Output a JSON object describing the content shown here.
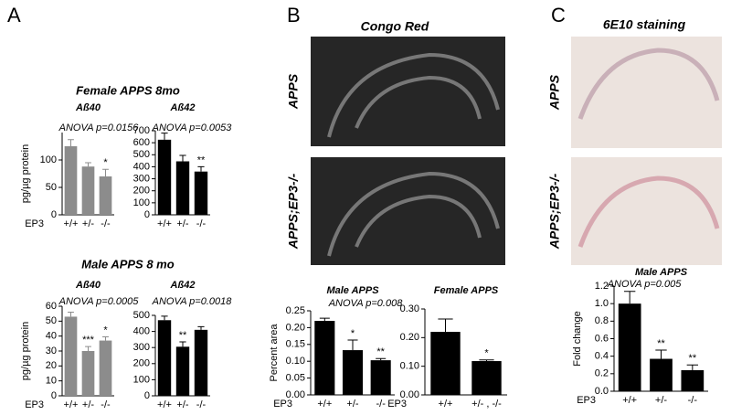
{
  "panels": [
    {
      "label": "A",
      "headings": [
        "Female APPS 8mo",
        "Male APPS 8 mo"
      ]
    },
    {
      "label": "B",
      "title": "Congo Red",
      "image_labels": [
        "APPS",
        "APPS;EP3-/-"
      ]
    },
    {
      "label": "C",
      "title": "6E10 staining",
      "image_labels": [
        "APPS",
        "APPS;EP3-/-"
      ]
    }
  ],
  "chart_data": [
    {
      "type": "bar",
      "title": "Aß40",
      "annotation": "ANOVA p=0.0156",
      "ylabel": "pg/µg protein",
      "xlabel": "EP3",
      "color": "#8c8c8c",
      "categories": [
        "+/+",
        "+/-",
        "-/-"
      ],
      "values": [
        125,
        88,
        70
      ],
      "errors": [
        12,
        7,
        13
      ],
      "significance": [
        null,
        null,
        "*"
      ],
      "ylim": [
        0,
        150
      ],
      "yticks": [
        0,
        50,
        100
      ]
    },
    {
      "type": "bar",
      "title": "Aß42",
      "annotation": "ANOVA p=0.0053",
      "color": "#000000",
      "categories": [
        "+/+",
        "+/-",
        "-/-"
      ],
      "values": [
        625,
        445,
        360
      ],
      "errors": [
        55,
        50,
        40
      ],
      "significance": [
        null,
        null,
        "**"
      ],
      "ylim": [
        0,
        700
      ],
      "yticks": [
        0,
        100,
        200,
        300,
        400,
        500,
        600,
        700
      ]
    },
    {
      "type": "bar",
      "title": "Aß40",
      "annotation": "ANOVA p=0.0005",
      "ylabel": "pg/µg protein",
      "xlabel": "EP3",
      "color": "#8c8c8c",
      "categories": [
        "+/+",
        "+/-",
        "-/-"
      ],
      "values": [
        53,
        30,
        37
      ],
      "errors": [
        3,
        3,
        2.5
      ],
      "significance": [
        null,
        "***",
        "*"
      ],
      "ylim": [
        0,
        60
      ],
      "yticks": [
        0,
        10,
        20,
        30,
        40,
        50,
        60
      ]
    },
    {
      "type": "bar",
      "title": "Aß42",
      "annotation": "ANOVA p=0.0018",
      "color": "#000000",
      "categories": [
        "+/+",
        "+/-",
        "-/-"
      ],
      "values": [
        470,
        305,
        410
      ],
      "errors": [
        25,
        30,
        20
      ],
      "significance": [
        null,
        "**",
        null
      ],
      "ylim": [
        0,
        500
      ],
      "yticks": [
        0,
        100,
        200,
        300,
        400,
        500
      ]
    },
    {
      "type": "bar",
      "title": "Male APPS",
      "annotation": "ANOVA p=0.008",
      "ylabel": "Percent area",
      "xlabel": "EP3",
      "color": "#000000",
      "categories": [
        "+/+",
        "+/-",
        "-/-"
      ],
      "values": [
        0.22,
        0.133,
        0.103
      ],
      "errors": [
        0.008,
        0.03,
        0.005
      ],
      "significance": [
        null,
        "*",
        "**"
      ],
      "ylim": [
        0,
        0.25
      ],
      "yticks": [
        {
          "value": 0,
          "label": "0.00"
        },
        {
          "value": 0.05,
          "label": "0.05"
        },
        {
          "value": 0.1,
          "label": "0.10"
        },
        {
          "value": 0.15,
          "label": "0.15"
        },
        {
          "value": 0.2,
          "label": "0.20"
        },
        {
          "value": 0.25,
          "label": "0.25"
        }
      ]
    },
    {
      "type": "bar",
      "title": "Female APPS",
      "xlabel": "EP3",
      "color": "#000000",
      "categories": [
        "+/+",
        "+/- , -/-"
      ],
      "values": [
        0.22,
        0.118
      ],
      "errors": [
        0.045,
        0.004
      ],
      "significance": [
        null,
        "*"
      ],
      "ylim": [
        0,
        0.3
      ],
      "yticks": [
        {
          "value": 0,
          "label": "0.00"
        },
        {
          "value": 0.1,
          "label": "0.10"
        },
        {
          "value": 0.2,
          "label": "0.20"
        },
        {
          "value": 0.3,
          "label": "0.30"
        }
      ]
    },
    {
      "type": "bar",
      "title": "Male APPS",
      "annotation": "ANOVA p=0.005",
      "ylabel": "Fold change",
      "xlabel": "EP3",
      "color": "#000000",
      "categories": [
        "+/+",
        "+/-",
        "-/-"
      ],
      "values": [
        1.0,
        0.37,
        0.24
      ],
      "errors": [
        0.14,
        0.1,
        0.06
      ],
      "significance": [
        null,
        "**",
        "**"
      ],
      "ylim": [
        0,
        1.2
      ],
      "yticks": [
        {
          "value": 0,
          "label": "0.0"
        },
        {
          "value": 0.2,
          "label": "0.2"
        },
        {
          "value": 0.4,
          "label": "0.4"
        },
        {
          "value": 0.6,
          "label": "0.6"
        },
        {
          "value": 0.8,
          "label": "0.8"
        },
        {
          "value": 1,
          "label": "1.0"
        },
        {
          "value": 1.2,
          "label": "1.2"
        }
      ]
    }
  ]
}
